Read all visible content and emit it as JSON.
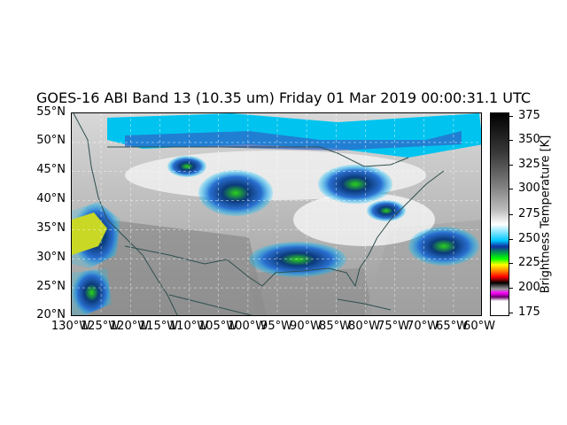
{
  "title": "GOES-16 ABI Band 13 (10.35 um) Friday 01 Mar 2019 00:00:31.1 UTC",
  "map": {
    "lat_labels": [
      "55°N",
      "50°N",
      "45°N",
      "40°N",
      "35°N",
      "30°N",
      "25°N",
      "20°N"
    ],
    "lon_labels": [
      "130°W",
      "125°W",
      "120°W",
      "115°W",
      "110°W",
      "105°W",
      "100°W",
      "95°W",
      "90°W",
      "85°W",
      "80°W",
      "75°W",
      "70°W",
      "65°W",
      "60°W"
    ],
    "lat_range": [
      20,
      55
    ],
    "lon_range": [
      -130,
      -60
    ],
    "gridlines": "dashed"
  },
  "colorbar": {
    "label": "Brightness Temperature [K]",
    "ticks": [
      "375",
      "350",
      "325",
      "300",
      "275",
      "250",
      "225",
      "200",
      "175"
    ],
    "range": [
      170,
      378
    ]
  }
}
